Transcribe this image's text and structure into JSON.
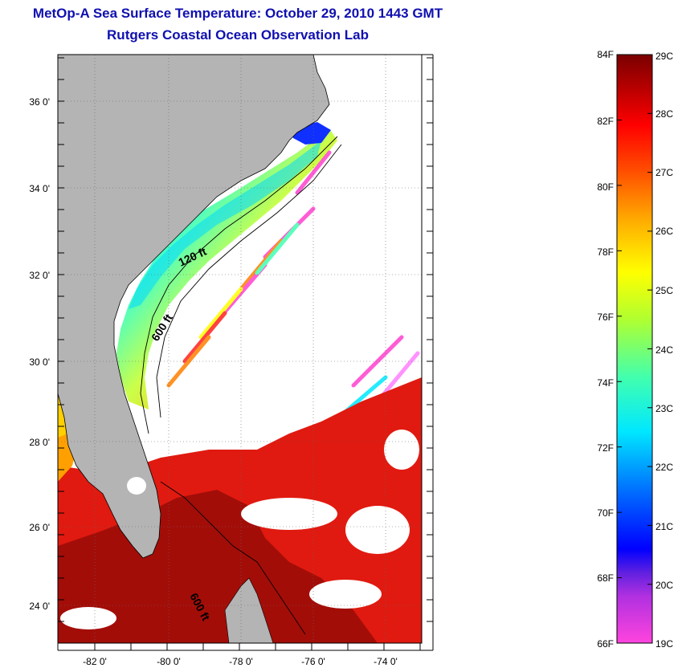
{
  "header": {
    "title": "MetOp-A Sea Surface Temperature:  October 29, 2010 1443 GMT",
    "subtitle": "Rutgers Coastal Ocean Observation Lab"
  },
  "map": {
    "lat_ticks": [
      "36 0'",
      "34 0'",
      "32 0'",
      "30 0'",
      "28 0'",
      "26 0'",
      "24 0'"
    ],
    "lon_ticks": [
      "-82 0'",
      "-80 0'",
      "-78 0'",
      "-76 0'",
      "-74 0'"
    ],
    "isobath_labels": [
      "120 ft",
      "600 ft",
      "600 ft"
    ],
    "colors": {
      "land": "#b4b4b4",
      "cloud": "#ffffff",
      "gulf_stream": "#cc1410",
      "deep_warm": "#9a0c08"
    }
  },
  "colorbar": {
    "f_labels": [
      "84F",
      "82F",
      "80F",
      "78F",
      "76F",
      "74F",
      "72F",
      "70F",
      "68F",
      "66F"
    ],
    "c_labels": [
      "29C",
      "28C",
      "27C",
      "26C",
      "25C",
      "24C",
      "23C",
      "22C",
      "21C",
      "20C",
      "19C"
    ],
    "stops": [
      "#ff44cc",
      "#8a1ee0",
      "#0000ff",
      "#0090ff",
      "#00ffff",
      "#6cff80",
      "#ffff00",
      "#ffa000",
      "#ff4000",
      "#ff0000",
      "#b00000",
      "#800000"
    ]
  }
}
